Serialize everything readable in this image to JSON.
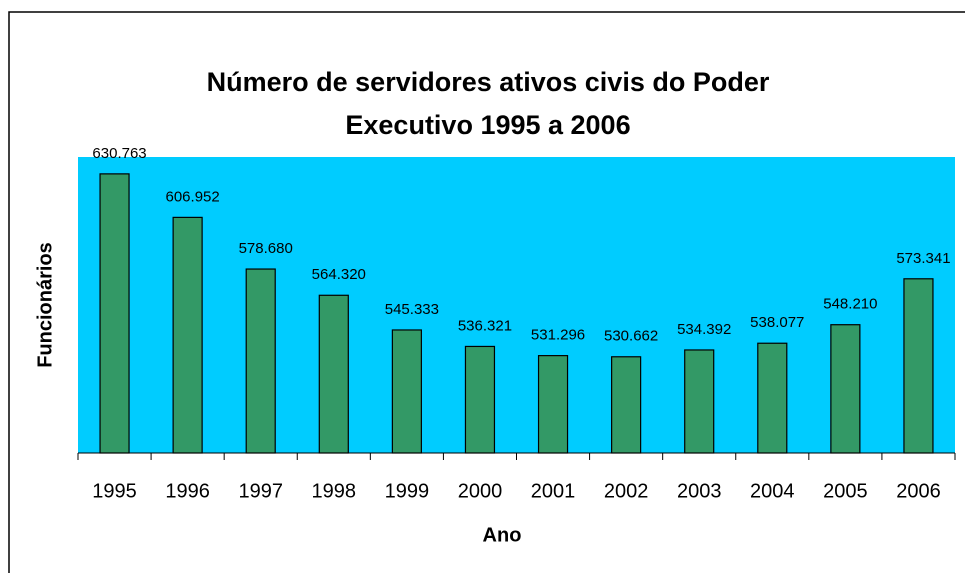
{
  "chart_data": {
    "type": "bar",
    "title": [
      "Número de servidores ativos civis do Poder",
      "Executivo 1995 a 2006"
    ],
    "x_label": "Ano",
    "y_label": "Funcionários",
    "categories": [
      "1995",
      "1996",
      "1997",
      "1998",
      "1999",
      "2000",
      "2001",
      "2002",
      "2003",
      "2004",
      "2005",
      "2006"
    ],
    "values": [
      630763,
      606952,
      578680,
      564320,
      545333,
      536321,
      531296,
      530662,
      534392,
      538077,
      548210,
      573341
    ],
    "value_labels": [
      "630.763",
      "606.952",
      "578.680",
      "564.320",
      "545.333",
      "536.321",
      "531.296",
      "530.662",
      "534.392",
      "538.077",
      "548.210",
      "573.341"
    ],
    "color": "#339966",
    "plot_background": "#00ccff",
    "ylim": [
      478000,
      640000
    ]
  }
}
